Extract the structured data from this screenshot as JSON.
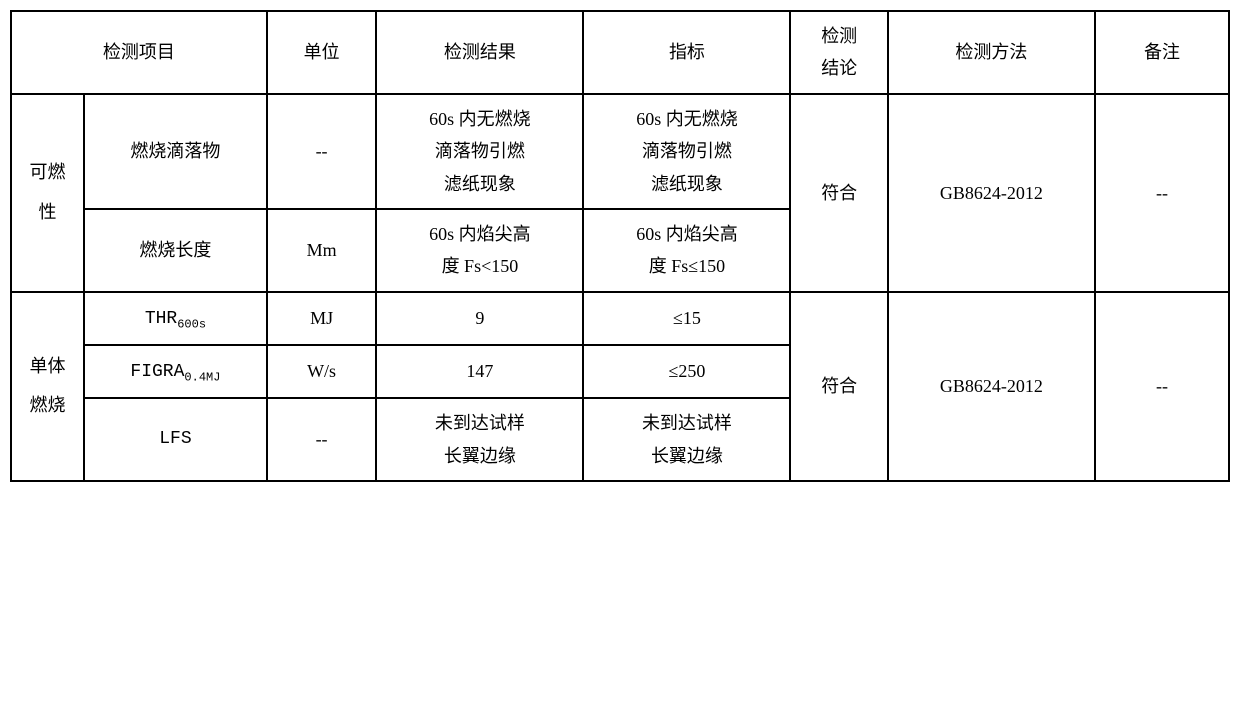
{
  "table": {
    "header": {
      "col0": "检测项目",
      "col2": "单位",
      "col3": "检测结果",
      "col4": "指标",
      "col5": "检测结论",
      "col5_line1": "检测",
      "col5_line2": "结论",
      "col6": "检测方法",
      "col7": "备注"
    },
    "section1": {
      "category": "可燃性",
      "category_line1": "可燃",
      "category_line2": "性",
      "row1": {
        "item": "燃烧滴落物",
        "unit": "--",
        "result": "60s 内无燃烧滴落物引燃滤纸现象",
        "result_line1": "60s 内无燃烧",
        "result_line2": "滴落物引燃",
        "result_line3": "滤纸现象",
        "indicator_line1": "60s 内无燃烧",
        "indicator_line2": "滴落物引燃",
        "indicator_line3": "滤纸现象"
      },
      "row2": {
        "item": "燃烧长度",
        "unit": "Mm",
        "result_line1": "60s 内焰尖高",
        "result_line2": "度 Fs<150",
        "indicator_line1": "60s 内焰尖高",
        "indicator_line2": "度 Fs≤150"
      },
      "conclusion": "符合",
      "method": "GB8624-2012",
      "remark": "--"
    },
    "section2": {
      "category_line1": "单体",
      "category_line2": "燃烧",
      "row1": {
        "item_main": "THR",
        "item_sub": "600s",
        "unit": "MJ",
        "result": "9",
        "indicator": "≤15"
      },
      "row2": {
        "item_main": "FIGRA",
        "item_sub": "0.4MJ",
        "unit": "W/s",
        "result": "147",
        "indicator": "≤250"
      },
      "row3": {
        "item": "LFS",
        "unit": "--",
        "result_line1": "未到达试样",
        "result_line2": "长翼边缘",
        "indicator_line1": "未到达试样",
        "indicator_line2": "长翼边缘"
      },
      "conclusion": "符合",
      "method": "GB8624-2012",
      "remark": "--"
    },
    "colors": {
      "border": "#000000",
      "background": "#ffffff",
      "text": "#000000"
    },
    "font": {
      "family": "SimSun",
      "base_size": 18,
      "sub_size": 12,
      "line_height": 1.8
    }
  }
}
